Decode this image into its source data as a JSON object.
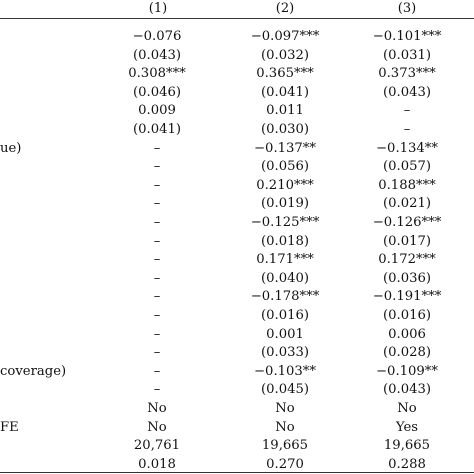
{
  "header": [
    "(1)",
    "(2)",
    "(3)"
  ],
  "rows": [
    {
      "label": "",
      "v": [
        "−0.076",
        "−0.097***",
        "−0.101***"
      ]
    },
    {
      "label": "",
      "v": [
        "(0.043)",
        "(0.032)",
        "(0.031)"
      ]
    },
    {
      "label": "",
      "v": [
        "0.308***",
        "0.365***",
        "0.373***"
      ]
    },
    {
      "label": "",
      "v": [
        "(0.046)",
        "(0.041)",
        "(0.043)"
      ]
    },
    {
      "label": "",
      "v": [
        "0.009",
        "0.011",
        "–"
      ]
    },
    {
      "label": "",
      "v": [
        "(0.041)",
        "(0.030)",
        "–"
      ]
    },
    {
      "label": "ue)",
      "v": [
        "–",
        "−0.137**",
        "−0.134**"
      ]
    },
    {
      "label": "",
      "v": [
        "–",
        "(0.056)",
        "(0.057)"
      ]
    },
    {
      "label": "",
      "v": [
        "–",
        "0.210***",
        "0.188***"
      ]
    },
    {
      "label": "",
      "v": [
        "–",
        "(0.019)",
        "(0.021)"
      ]
    },
    {
      "label": "",
      "v": [
        "–",
        "−0.125***",
        "−0.126***"
      ]
    },
    {
      "label": "",
      "v": [
        "–",
        "(0.018)",
        "(0.017)"
      ]
    },
    {
      "label": "",
      "v": [
        "–",
        "0.171***",
        "0.172***"
      ]
    },
    {
      "label": "",
      "v": [
        "–",
        "(0.040)",
        "(0.036)"
      ]
    },
    {
      "label": "",
      "v": [
        "–",
        "−0.178***",
        "−0.191***"
      ]
    },
    {
      "label": "",
      "v": [
        "–",
        "(0.016)",
        "(0.016)"
      ]
    },
    {
      "label": "",
      "v": [
        "–",
        "0.001",
        "0.006"
      ]
    },
    {
      "label": "",
      "v": [
        "–",
        "(0.033)",
        "(0.028)"
      ]
    },
    {
      "label": "coverage)",
      "v": [
        "–",
        "−0.103**",
        "−0.109**"
      ]
    },
    {
      "label": "",
      "v": [
        "–",
        "(0.045)",
        "(0.043)"
      ]
    },
    {
      "label": "",
      "v": [
        "No",
        "No",
        "No"
      ]
    },
    {
      "label": "FE",
      "v": [
        "No",
        "No",
        "Yes"
      ]
    },
    {
      "label": "",
      "v": [
        "20,761",
        "19,665",
        "19,665"
      ]
    },
    {
      "label": "",
      "v": [
        "0.018",
        "0.270",
        "0.288"
      ]
    }
  ]
}
